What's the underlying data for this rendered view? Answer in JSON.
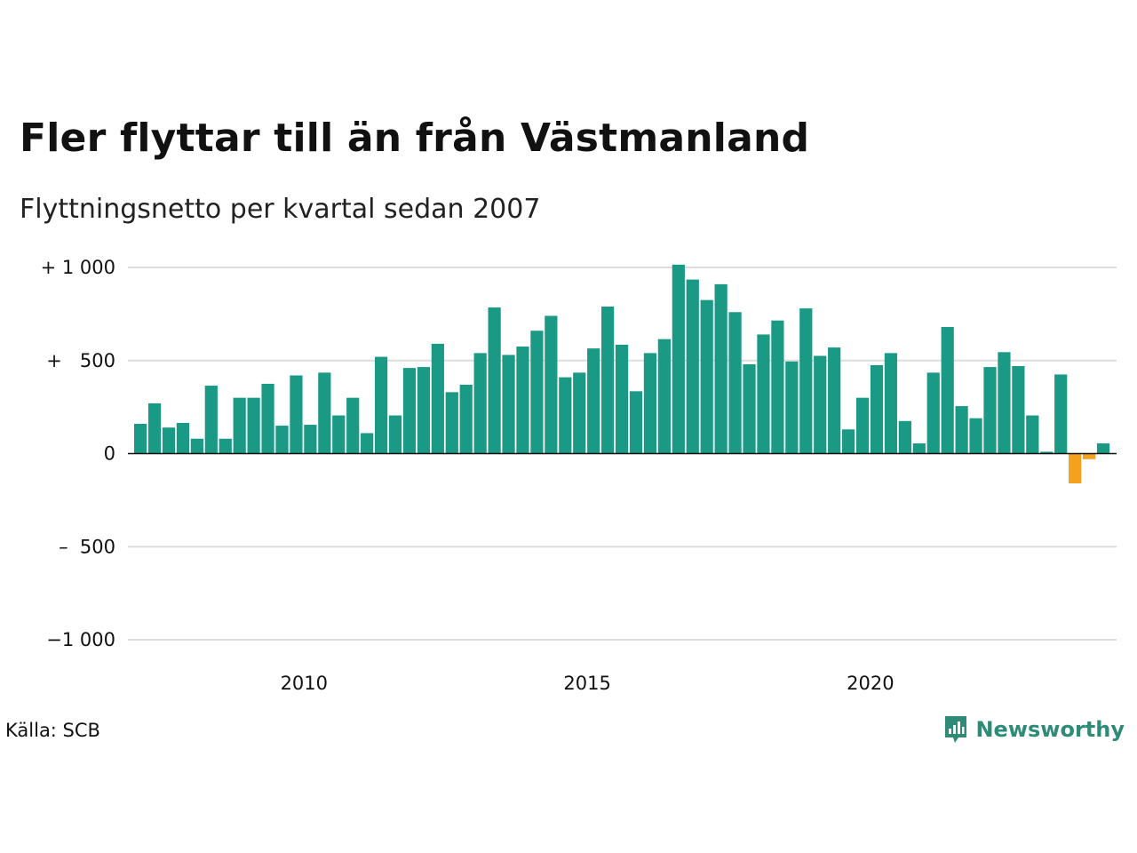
{
  "chart_data": {
    "type": "bar",
    "title": "Fler flyttar till än från Västmanland",
    "subtitle": "Flyttningsnetto per kvartal sedan 2007",
    "xlabel": "",
    "ylabel": "",
    "ylim": [
      -1000,
      1000
    ],
    "y_ticks": [
      {
        "value": 1000,
        "label": "+ 1 000"
      },
      {
        "value": 500,
        "label": "+   500"
      },
      {
        "value": 0,
        "label": "0"
      },
      {
        "value": -500,
        "label": "–  500"
      },
      {
        "value": -1000,
        "label": "−1 000"
      }
    ],
    "x_ticks": [
      {
        "year": 2010,
        "label": "2010"
      },
      {
        "year": 2015,
        "label": "2015"
      },
      {
        "year": 2020,
        "label": "2020"
      }
    ],
    "first_period": "2007 Q1",
    "grid": "horizontal",
    "positive_color": "#1a9985",
    "negative_color": "#f4a11d",
    "values": [
      160,
      270,
      140,
      165,
      80,
      365,
      80,
      300,
      300,
      375,
      150,
      420,
      155,
      435,
      205,
      300,
      110,
      520,
      205,
      460,
      465,
      590,
      330,
      370,
      540,
      785,
      530,
      575,
      660,
      740,
      410,
      435,
      565,
      790,
      585,
      335,
      540,
      615,
      1015,
      935,
      825,
      910,
      760,
      480,
      640,
      715,
      495,
      780,
      525,
      570,
      130,
      300,
      475,
      540,
      175,
      55,
      435,
      680,
      255,
      190,
      465,
      545,
      470,
      205,
      10,
      425,
      -160,
      -30,
      55
    ]
  },
  "footer": {
    "source": "Källa: SCB",
    "brand": "Newsworthy",
    "brand_color": "#2e8b78",
    "brand_icon": "bar-chart-speech-bubble-icon"
  }
}
